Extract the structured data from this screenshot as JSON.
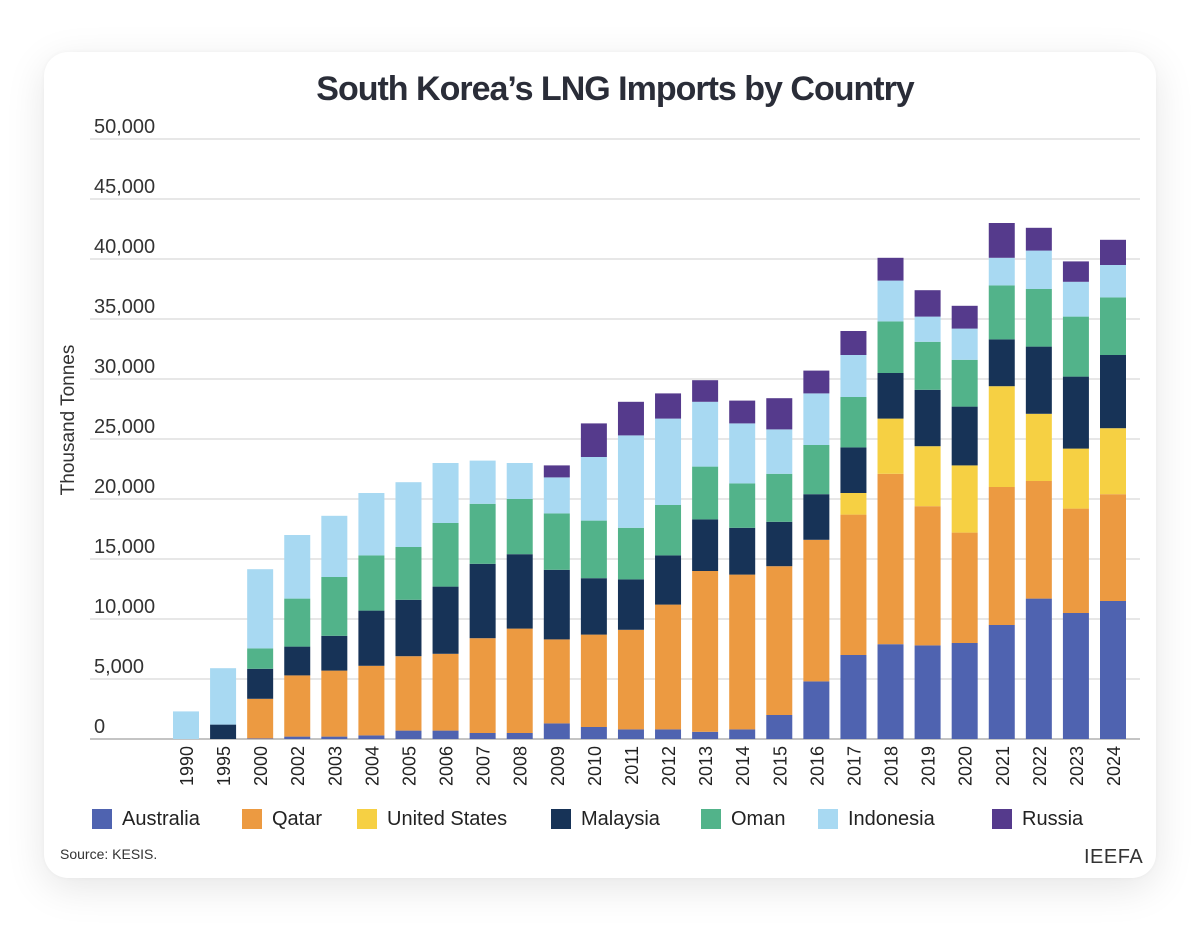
{
  "chart_data": {
    "type": "bar",
    "stacked": true,
    "title": "South Korea’s LNG Imports by Country",
    "ylabel": "Thousand Tonnes",
    "ylim": [
      0,
      50000
    ],
    "yticks": [
      0,
      5000,
      10000,
      15000,
      20000,
      25000,
      30000,
      35000,
      40000,
      45000,
      50000
    ],
    "ytick_labels": [
      "0",
      "5,000",
      "10,000",
      "15,000",
      "20,000",
      "25,000",
      "30,000",
      "35,000",
      "40,000",
      "45,000",
      "50,000"
    ],
    "grid": true,
    "legend_position": "bottom",
    "categories": [
      "1990",
      "1995",
      "2000",
      "2002",
      "2003",
      "2004",
      "2005",
      "2006",
      "2007",
      "2008",
      "2009",
      "2010",
      "2011",
      "2012",
      "2013",
      "2014",
      "2015",
      "2016",
      "2017",
      "2018",
      "2019",
      "2020",
      "2021",
      "2022",
      "2023",
      "2024"
    ],
    "series": [
      {
        "name": "Australia",
        "color": "#4f63b0",
        "values": [
          0,
          0,
          50,
          200,
          200,
          300,
          700,
          700,
          500,
          500,
          1300,
          1000,
          800,
          800,
          600,
          800,
          2000,
          4800,
          7000,
          7900,
          7800,
          8000,
          9500,
          11700,
          10500,
          11500
        ]
      },
      {
        "name": "Qatar",
        "color": "#ec9a41",
        "values": [
          0,
          0,
          3300,
          5100,
          5500,
          5800,
          6200,
          6400,
          7900,
          8700,
          7000,
          7700,
          8300,
          10400,
          13400,
          12900,
          12400,
          11800,
          11700,
          14200,
          11600,
          9200,
          11500,
          9800,
          8700,
          8900
        ]
      },
      {
        "name": "United States",
        "color": "#f6d043",
        "values": [
          0,
          0,
          0,
          0,
          0,
          0,
          0,
          0,
          0,
          0,
          0,
          0,
          0,
          0,
          0,
          0,
          0,
          0,
          1800,
          4600,
          5000,
          5600,
          8400,
          5600,
          5000,
          5500
        ]
      },
      {
        "name": "Malaysia",
        "color": "#173357",
        "values": [
          0,
          1200,
          2500,
          2400,
          2900,
          4600,
          4700,
          5600,
          6200,
          6200,
          5800,
          4700,
          4200,
          4100,
          4300,
          3900,
          3700,
          3800,
          3800,
          3800,
          4700,
          4900,
          3900,
          5600,
          6000,
          6100
        ]
      },
      {
        "name": "Oman",
        "color": "#52b38a",
        "values": [
          0,
          0,
          1700,
          4000,
          4900,
          4600,
          4400,
          5300,
          5000,
          4600,
          4700,
          4800,
          4300,
          4200,
          4400,
          3700,
          4000,
          4100,
          4200,
          4300,
          4000,
          3900,
          4500,
          4800,
          5000,
          4800
        ]
      },
      {
        "name": "Indonesia",
        "color": "#a8d9f2",
        "values": [
          2300,
          4700,
          6600,
          5300,
          5100,
          5200,
          5400,
          5000,
          3600,
          3000,
          3000,
          5300,
          7700,
          7200,
          5400,
          5000,
          3700,
          4300,
          3500,
          3400,
          2100,
          2600,
          2300,
          3200,
          2900,
          2700
        ]
      },
      {
        "name": "Russia",
        "color": "#553a8c",
        "values": [
          0,
          0,
          0,
          0,
          0,
          0,
          0,
          0,
          0,
          0,
          1000,
          2800,
          2800,
          2100,
          1800,
          1900,
          2600,
          1900,
          2000,
          1900,
          2200,
          1900,
          2900,
          1900,
          1700,
          2100
        ]
      }
    ]
  },
  "footer": {
    "source": "Source: KESIS.",
    "brand": "IEEFA"
  }
}
